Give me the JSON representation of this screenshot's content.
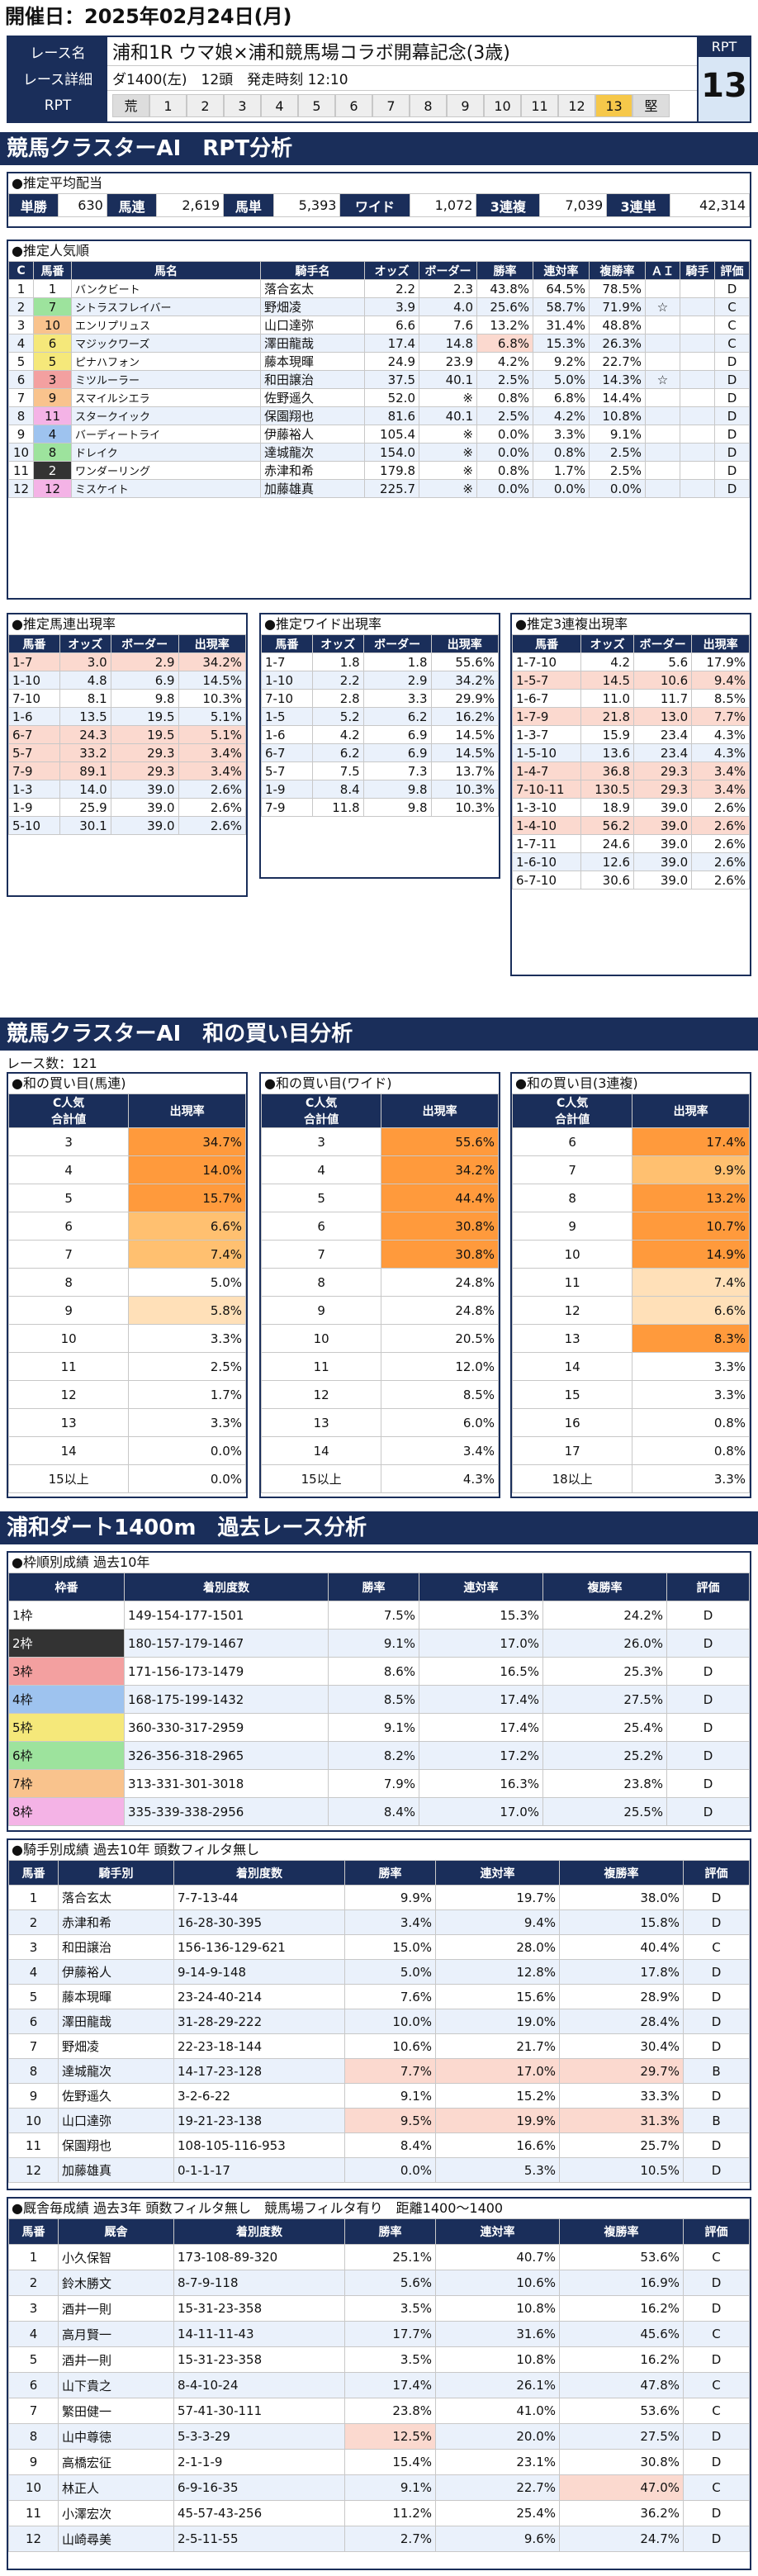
{
  "date": "開催日：2025年02月24日(月)",
  "race": {
    "name_label": "レース名",
    "name": "浦和1R ウマ娘×浦和競馬場コラボ開幕記念(3歳)",
    "detail_label": "レース詳細",
    "detail": "ダ1400(左)　12頭　発走時刻 12:10",
    "rpt_label": "RPT",
    "scale": [
      "荒",
      "1",
      "2",
      "3",
      "4",
      "5",
      "6",
      "7",
      "8",
      "9",
      "10",
      "11",
      "12",
      "13",
      "堅"
    ],
    "rpt_title": "RPT",
    "rpt_value": "13"
  },
  "sec1": "競馬クラスターAI　RPT分析",
  "avg": {
    "title": "●推定平均配当",
    "items": [
      [
        "単勝",
        "630"
      ],
      [
        "馬連",
        "2,619"
      ],
      [
        "馬単",
        "5,393"
      ],
      [
        "ワイド",
        "1,072"
      ],
      [
        "3連複",
        "7,039"
      ],
      [
        "3連単",
        "42,314"
      ]
    ]
  },
  "pop": {
    "title": "●推定人気順",
    "headers": [
      "C",
      "馬番",
      "馬名",
      "騎手名",
      "オッズ",
      "ボーダー",
      "勝率",
      "連対率",
      "複勝率",
      "ＡＩ",
      "騎手",
      "評価"
    ],
    "rows": [
      [
        "1",
        "1",
        "バンクビート",
        "落合玄太",
        "2.2",
        "2.3",
        "43.8%",
        "64.5%",
        "78.5%",
        "",
        "",
        "D"
      ],
      [
        "2",
        "7",
        "シトラスフレイバー",
        "野畑凌",
        "3.9",
        "4.0",
        "25.6%",
        "58.7%",
        "71.9%",
        "☆",
        "",
        "C"
      ],
      [
        "3",
        "10",
        "エンリプリュス",
        "山口達弥",
        "6.6",
        "7.6",
        "13.2%",
        "31.4%",
        "48.8%",
        "",
        "",
        "C"
      ],
      [
        "4",
        "6",
        "マジックワーズ",
        "澤田龍哉",
        "17.4",
        "14.8",
        "6.8%",
        "15.3%",
        "26.3%",
        "",
        "",
        "C"
      ],
      [
        "5",
        "5",
        "ピナハフォン",
        "藤本現暉",
        "24.9",
        "23.9",
        "4.2%",
        "9.2%",
        "22.7%",
        "",
        "",
        "D"
      ],
      [
        "6",
        "3",
        "ミツルーラー",
        "和田譲治",
        "37.5",
        "40.1",
        "2.5%",
        "5.0%",
        "14.3%",
        "☆",
        "",
        "D"
      ],
      [
        "7",
        "9",
        "スマイルシエラ",
        "佐野遥久",
        "52.0",
        "※",
        "0.8%",
        "6.8%",
        "14.4%",
        "",
        "",
        "D"
      ],
      [
        "8",
        "11",
        "スタークイック",
        "保園翔也",
        "81.6",
        "40.1",
        "2.5%",
        "4.2%",
        "10.8%",
        "",
        "",
        "D"
      ],
      [
        "9",
        "4",
        "バーディートライ",
        "伊藤裕人",
        "105.4",
        "※",
        "0.0%",
        "3.3%",
        "9.1%",
        "",
        "",
        "D"
      ],
      [
        "10",
        "8",
        "ドレイク",
        "達城龍次",
        "154.0",
        "※",
        "0.0%",
        "0.8%",
        "2.5%",
        "",
        "",
        "D"
      ],
      [
        "11",
        "2",
        "ワンダーリング",
        "赤津和希",
        "179.8",
        "※",
        "0.8%",
        "1.7%",
        "2.5%",
        "",
        "",
        "D"
      ],
      [
        "12",
        "12",
        "ミスケイト",
        "加藤雄真",
        "225.7",
        "※",
        "0.0%",
        "0.0%",
        "0.0%",
        "",
        "",
        "D"
      ]
    ]
  },
  "umaren": {
    "title": "●推定馬連出現率",
    "headers": [
      "馬番",
      "オッズ",
      "ボーダー",
      "出現率"
    ],
    "rows": [
      [
        "1-7",
        "3.0",
        "2.9",
        "34.2%"
      ],
      [
        "1-10",
        "4.8",
        "6.9",
        "14.5%"
      ],
      [
        "7-10",
        "8.1",
        "9.8",
        "10.3%"
      ],
      [
        "1-6",
        "13.5",
        "19.5",
        "5.1%"
      ],
      [
        "6-7",
        "24.3",
        "19.5",
        "5.1%"
      ],
      [
        "5-7",
        "33.2",
        "29.3",
        "3.4%"
      ],
      [
        "7-9",
        "89.1",
        "29.3",
        "3.4%"
      ],
      [
        "1-3",
        "14.0",
        "39.0",
        "2.6%"
      ],
      [
        "1-9",
        "25.9",
        "39.0",
        "2.6%"
      ],
      [
        "5-10",
        "30.1",
        "39.0",
        "2.6%"
      ]
    ]
  },
  "wide": {
    "title": "●推定ワイド出現率",
    "headers": [
      "馬番",
      "オッズ",
      "ボーダー",
      "出現率"
    ],
    "rows": [
      [
        "1-7",
        "1.8",
        "1.8",
        "55.6%"
      ],
      [
        "1-10",
        "2.2",
        "2.9",
        "34.2%"
      ],
      [
        "7-10",
        "2.8",
        "3.3",
        "29.9%"
      ],
      [
        "1-5",
        "5.2",
        "6.2",
        "16.2%"
      ],
      [
        "1-6",
        "4.2",
        "6.9",
        "14.5%"
      ],
      [
        "6-7",
        "6.2",
        "6.9",
        "14.5%"
      ],
      [
        "5-7",
        "7.5",
        "7.3",
        "13.7%"
      ],
      [
        "1-9",
        "8.4",
        "9.8",
        "10.3%"
      ],
      [
        "7-9",
        "11.8",
        "9.8",
        "10.3%"
      ]
    ]
  },
  "trio": {
    "title": "●推定3連複出現率",
    "headers": [
      "馬番",
      "オッズ",
      "ボーダー",
      "出現率"
    ],
    "rows": [
      [
        "1-7-10",
        "4.2",
        "5.6",
        "17.9%"
      ],
      [
        "1-5-7",
        "14.5",
        "10.6",
        "9.4%"
      ],
      [
        "1-6-7",
        "11.0",
        "11.7",
        "8.5%"
      ],
      [
        "1-7-9",
        "21.8",
        "13.0",
        "7.7%"
      ],
      [
        "1-3-7",
        "15.9",
        "23.4",
        "4.3%"
      ],
      [
        "1-5-10",
        "13.6",
        "23.4",
        "4.3%"
      ],
      [
        "1-4-7",
        "36.8",
        "29.3",
        "3.4%"
      ],
      [
        "7-10-11",
        "130.5",
        "29.3",
        "3.4%"
      ],
      [
        "1-3-10",
        "18.9",
        "39.0",
        "2.6%"
      ],
      [
        "1-4-10",
        "56.2",
        "39.0",
        "2.6%"
      ],
      [
        "1-7-11",
        "24.6",
        "39.0",
        "2.6%"
      ],
      [
        "1-6-10",
        "12.6",
        "39.0",
        "2.6%"
      ],
      [
        "6-7-10",
        "30.6",
        "39.0",
        "2.6%"
      ]
    ]
  },
  "sec2": "競馬クラスターAI　和の買い目分析",
  "race_count": "レース数：121",
  "sum_umaren": {
    "title": "●和の買い目(馬連)",
    "headers": [
      "C人気\n合計値",
      "出現率"
    ],
    "rows": [
      [
        "3",
        "34.7%"
      ],
      [
        "4",
        "14.0%"
      ],
      [
        "5",
        "15.7%"
      ],
      [
        "6",
        "6.6%"
      ],
      [
        "7",
        "7.4%"
      ],
      [
        "8",
        "5.0%"
      ],
      [
        "9",
        "5.8%"
      ],
      [
        "10",
        "3.3%"
      ],
      [
        "11",
        "2.5%"
      ],
      [
        "12",
        "1.7%"
      ],
      [
        "13",
        "3.3%"
      ],
      [
        "14",
        "0.0%"
      ],
      [
        "15以上",
        "0.0%"
      ]
    ]
  },
  "sum_wide": {
    "title": "●和の買い目(ワイド)",
    "headers": [
      "C人気\n合計値",
      "出現率"
    ],
    "rows": [
      [
        "3",
        "55.6%"
      ],
      [
        "4",
        "34.2%"
      ],
      [
        "5",
        "44.4%"
      ],
      [
        "6",
        "30.8%"
      ],
      [
        "7",
        "30.8%"
      ],
      [
        "8",
        "24.8%"
      ],
      [
        "9",
        "24.8%"
      ],
      [
        "10",
        "20.5%"
      ],
      [
        "11",
        "12.0%"
      ],
      [
        "12",
        "8.5%"
      ],
      [
        "13",
        "6.0%"
      ],
      [
        "14",
        "3.4%"
      ],
      [
        "15以上",
        "4.3%"
      ]
    ]
  },
  "sum_trio": {
    "title": "●和の買い目(3連複)",
    "headers": [
      "C人気\n合計値",
      "出現率"
    ],
    "rows": [
      [
        "6",
        "17.4%"
      ],
      [
        "7",
        "9.9%"
      ],
      [
        "8",
        "13.2%"
      ],
      [
        "9",
        "10.7%"
      ],
      [
        "10",
        "14.9%"
      ],
      [
        "11",
        "7.4%"
      ],
      [
        "12",
        "6.6%"
      ],
      [
        "13",
        "8.3%"
      ],
      [
        "14",
        "3.3%"
      ],
      [
        "15",
        "3.3%"
      ],
      [
        "16",
        "0.8%"
      ],
      [
        "17",
        "0.8%"
      ],
      [
        "18以上",
        "3.3%"
      ]
    ]
  },
  "sec3": "浦和ダート1400m　過去レース分析",
  "frame": {
    "title": "●枠順別成績 過去10年",
    "headers": [
      "枠番",
      "着別度数",
      "勝率",
      "連対率",
      "複勝率",
      "評価"
    ],
    "rows": [
      [
        "1枠",
        "149-154-177-1501",
        "7.5%",
        "15.3%",
        "24.2%",
        "D"
      ],
      [
        "2枠",
        "180-157-179-1467",
        "9.1%",
        "17.0%",
        "26.0%",
        "D"
      ],
      [
        "3枠",
        "171-156-173-1479",
        "8.6%",
        "16.5%",
        "25.3%",
        "D"
      ],
      [
        "4枠",
        "168-175-199-1432",
        "8.5%",
        "17.4%",
        "27.5%",
        "D"
      ],
      [
        "5枠",
        "360-330-317-2959",
        "9.1%",
        "17.4%",
        "25.4%",
        "D"
      ],
      [
        "6枠",
        "326-356-318-2965",
        "8.2%",
        "17.2%",
        "25.2%",
        "D"
      ],
      [
        "7枠",
        "313-331-301-3018",
        "7.9%",
        "16.3%",
        "23.8%",
        "D"
      ],
      [
        "8枠",
        "335-339-338-2956",
        "8.4%",
        "17.0%",
        "25.5%",
        "D"
      ]
    ]
  },
  "jockey": {
    "title": "●騎手別成績 過去10年 頭数フィルタ無し",
    "headers": [
      "馬番",
      "騎手別",
      "着別度数",
      "勝率",
      "連対率",
      "複勝率",
      "評価"
    ],
    "rows": [
      [
        "1",
        "落合玄太",
        "7-7-13-44",
        "9.9%",
        "19.7%",
        "38.0%",
        "D"
      ],
      [
        "2",
        "赤津和希",
        "16-28-30-395",
        "3.4%",
        "9.4%",
        "15.8%",
        "D"
      ],
      [
        "3",
        "和田譲治",
        "156-136-129-621",
        "15.0%",
        "28.0%",
        "40.4%",
        "C"
      ],
      [
        "4",
        "伊藤裕人",
        "9-14-9-148",
        "5.0%",
        "12.8%",
        "17.8%",
        "D"
      ],
      [
        "5",
        "藤本現暉",
        "23-24-40-214",
        "7.6%",
        "15.6%",
        "28.9%",
        "D"
      ],
      [
        "6",
        "澤田龍哉",
        "31-28-29-222",
        "10.0%",
        "19.0%",
        "28.4%",
        "D"
      ],
      [
        "7",
        "野畑凌",
        "22-23-18-144",
        "10.6%",
        "21.7%",
        "30.4%",
        "D"
      ],
      [
        "8",
        "達城龍次",
        "14-17-23-128",
        "7.7%",
        "17.0%",
        "29.7%",
        "B"
      ],
      [
        "9",
        "佐野遥久",
        "3-2-6-22",
        "9.1%",
        "15.2%",
        "33.3%",
        "D"
      ],
      [
        "10",
        "山口達弥",
        "19-21-23-138",
        "9.5%",
        "19.9%",
        "31.3%",
        "B"
      ],
      [
        "11",
        "保園翔也",
        "108-105-116-953",
        "8.4%",
        "16.6%",
        "25.7%",
        "D"
      ],
      [
        "12",
        "加藤雄真",
        "0-1-1-17",
        "0.0%",
        "5.3%",
        "10.5%",
        "D"
      ]
    ]
  },
  "trainer": {
    "title": "●厩舎毎成績 過去3年 頭数フィルタ無し　競馬場フィルタ有り　距離1400～1400",
    "headers": [
      "馬番",
      "厩舎",
      "着別度数",
      "勝率",
      "連対率",
      "複勝率",
      "評価"
    ],
    "rows": [
      [
        "1",
        "小久保智",
        "173-108-89-320",
        "25.1%",
        "40.7%",
        "53.6%",
        "C"
      ],
      [
        "2",
        "鈴木勝文",
        "8-7-9-118",
        "5.6%",
        "10.6%",
        "16.9%",
        "D"
      ],
      [
        "3",
        "酒井一則",
        "15-31-23-358",
        "3.5%",
        "10.8%",
        "16.2%",
        "D"
      ],
      [
        "4",
        "高月賢一",
        "14-11-11-43",
        "17.7%",
        "31.6%",
        "45.6%",
        "C"
      ],
      [
        "5",
        "酒井一則",
        "15-31-23-358",
        "3.5%",
        "10.8%",
        "16.2%",
        "D"
      ],
      [
        "6",
        "山下貴之",
        "8-4-10-24",
        "17.4%",
        "26.1%",
        "47.8%",
        "C"
      ],
      [
        "7",
        "繁田健一",
        "57-41-30-111",
        "23.8%",
        "41.0%",
        "53.6%",
        "C"
      ],
      [
        "8",
        "山中尊徳",
        "5-3-3-29",
        "12.5%",
        "20.0%",
        "27.5%",
        "D"
      ],
      [
        "9",
        "高橋宏征",
        "2-1-1-9",
        "15.4%",
        "23.1%",
        "30.8%",
        "D"
      ],
      [
        "10",
        "林正人",
        "6-9-16-35",
        "9.1%",
        "22.7%",
        "47.0%",
        "C"
      ],
      [
        "11",
        "小澤宏次",
        "45-57-43-256",
        "11.2%",
        "25.4%",
        "36.2%",
        "D"
      ],
      [
        "12",
        "山崎尋美",
        "2-5-11-55",
        "2.7%",
        "9.6%",
        "24.7%",
        "D"
      ]
    ]
  },
  "colors": {
    "navy": "#1a2e5a",
    "highlight": "#ff9a3c",
    "rpt_bg": "#d8e6f5"
  }
}
